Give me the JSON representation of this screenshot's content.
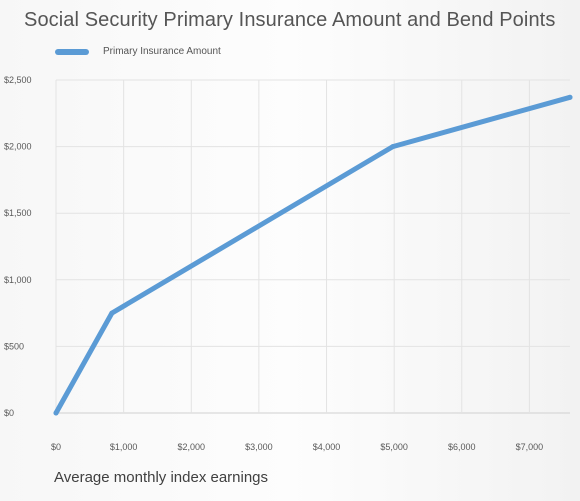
{
  "chart_data": {
    "type": "line",
    "title": "Social Security Primary Insurance Amount and Bend Points",
    "xlabel": "Average monthly index earnings",
    "ylabel": "",
    "xlim": [
      0,
      7600
    ],
    "ylim": [
      0,
      2500
    ],
    "x_ticks": [
      0,
      1000,
      2000,
      3000,
      4000,
      5000,
      6000,
      7000
    ],
    "x_tick_labels": [
      "$0",
      "$1,000",
      "$2,000",
      "$3,000",
      "$4,000",
      "$5,000",
      "$6,000",
      "$7,000"
    ],
    "y_ticks": [
      0,
      500,
      1000,
      1500,
      2000,
      2500
    ],
    "y_tick_labels": [
      "$0",
      "$500",
      "$1,000",
      "$1,500",
      "$2,000",
      "$2,500"
    ],
    "grid": true,
    "legend_position": "top-left",
    "series": [
      {
        "name": "Primary Insurance Amount",
        "color": "#5b9bd5",
        "x": [
          0,
          826,
          4980,
          7600
        ],
        "y": [
          0,
          750,
          2000,
          2370
        ]
      }
    ]
  }
}
